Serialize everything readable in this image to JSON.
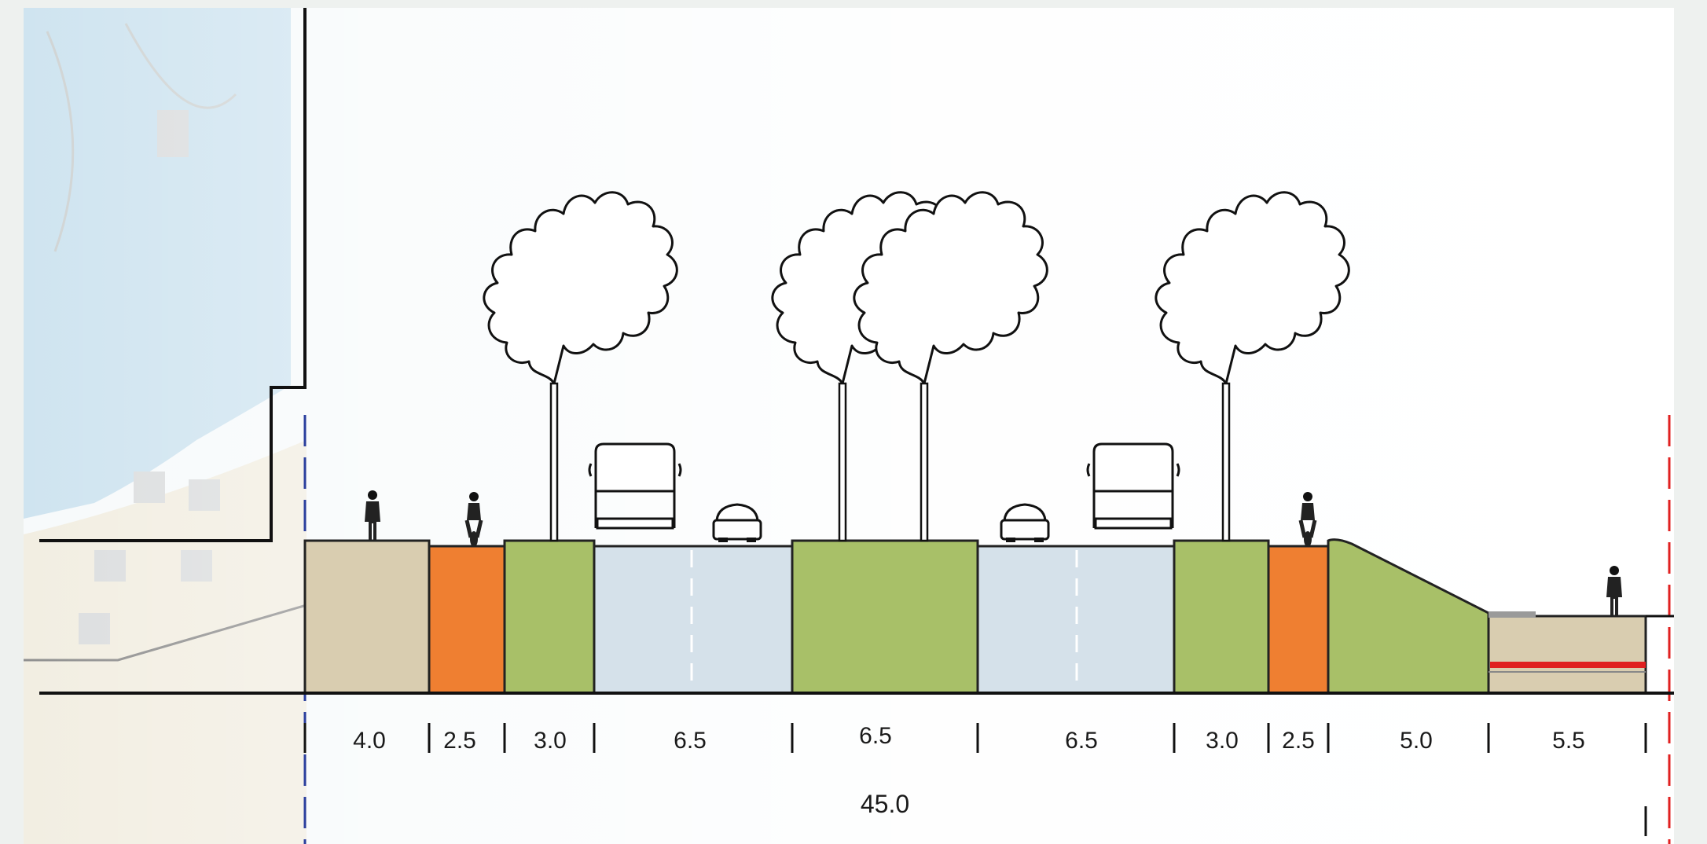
{
  "section": {
    "segments": [
      {
        "width": "4.0",
        "surface": "sidewalk"
      },
      {
        "width": "2.5",
        "surface": "bike-lane"
      },
      {
        "width": "3.0",
        "surface": "green-strip"
      },
      {
        "width": "6.5",
        "surface": "roadway"
      },
      {
        "width": "6.5",
        "surface": "green-median"
      },
      {
        "width": "6.5",
        "surface": "roadway"
      },
      {
        "width": "3.0",
        "surface": "green-strip"
      },
      {
        "width": "2.5",
        "surface": "bike-lane"
      },
      {
        "width": "5.0",
        "surface": "green-embankment"
      },
      {
        "width": "5.5",
        "surface": "quay"
      }
    ],
    "total_width": "45.0"
  },
  "colors": {
    "sidewalk": "#d9cdb0",
    "bike_lane": "#ef7f31",
    "green": "#a8c068",
    "road": "#d5e1ea",
    "water": "#cfe4f0",
    "background": "#eef1ef",
    "boundary_left": "#2a3e9e",
    "boundary_right": "#e02020",
    "accent_red": "#e02020"
  },
  "figures": {
    "trees": 4,
    "pedestrians": 2,
    "cyclists": 2,
    "buses": 2,
    "cars": 2
  }
}
